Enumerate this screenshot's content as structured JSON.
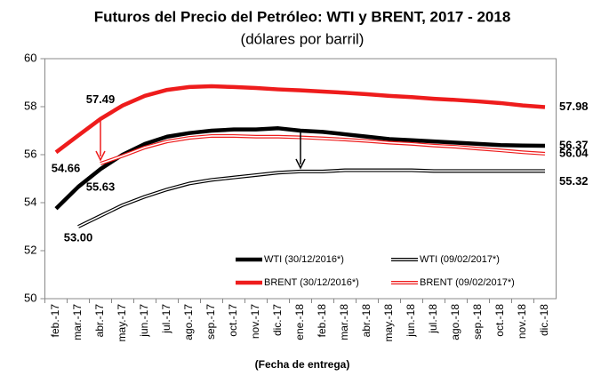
{
  "chart_data": {
    "type": "line",
    "title": "Futuros del Precio del Petróleo: WTI y BRENT, 2017 - 2018",
    "subtitle": "(dólares por barril)",
    "x_label": "(Fecha de entrega)",
    "categories": [
      "feb.-17",
      "mar.-17",
      "abr.-17",
      "may.-17",
      "jun.-17",
      "jul.-17",
      "ago.-17",
      "sep.-17",
      "oct.-17",
      "nov.-17",
      "dic.-17",
      "ene.-18",
      "feb.-18",
      "mar.-18",
      "abr.-18",
      "may.-18",
      "jun.-18",
      "jul.-18",
      "ago.-18",
      "sep.-18",
      "oct.-18",
      "nov.-18",
      "dic.-18"
    ],
    "ylim": [
      50,
      60
    ],
    "yticks": [
      50,
      52,
      54,
      56,
      58,
      60
    ],
    "legend": "lower center",
    "series": [
      {
        "name": "WTI (30/12/2016*)",
        "color": "#000000",
        "style": "solid",
        "values": [
          53.75,
          54.66,
          55.4,
          56.0,
          56.45,
          56.75,
          56.9,
          57.0,
          57.05,
          57.05,
          57.1,
          57.0,
          56.95,
          56.85,
          56.75,
          56.65,
          56.6,
          56.55,
          56.5,
          56.45,
          56.4,
          56.38,
          56.37
        ],
        "value_labels": [
          null,
          "54.66",
          null,
          null,
          null,
          null,
          null,
          null,
          null,
          null,
          null,
          null,
          null,
          null,
          null,
          null,
          null,
          null,
          null,
          null,
          null,
          null,
          "56.37"
        ]
      },
      {
        "name": "WTI (09/02/2017*)",
        "color": "#000000",
        "style": "hollow",
        "values": [
          null,
          53.0,
          53.45,
          53.9,
          54.25,
          54.55,
          54.8,
          54.95,
          55.05,
          55.15,
          55.25,
          55.3,
          55.3,
          55.35,
          55.35,
          55.35,
          55.35,
          55.32,
          55.32,
          55.32,
          55.32,
          55.32,
          55.32
        ],
        "value_labels": [
          null,
          "53.00",
          null,
          null,
          null,
          null,
          null,
          null,
          null,
          null,
          null,
          null,
          null,
          null,
          null,
          null,
          null,
          null,
          null,
          null,
          null,
          null,
          "55.32"
        ]
      },
      {
        "name": "BRENT (30/12/2016*)",
        "color": "#ee1c1c",
        "style": "solid",
        "values": [
          56.1,
          56.8,
          57.49,
          58.05,
          58.45,
          58.7,
          58.82,
          58.85,
          58.82,
          58.78,
          58.72,
          58.68,
          58.63,
          58.58,
          58.52,
          58.45,
          58.4,
          58.33,
          58.28,
          58.22,
          58.15,
          58.05,
          57.98
        ],
        "value_labels": [
          null,
          null,
          "57.49",
          null,
          null,
          null,
          null,
          null,
          null,
          null,
          null,
          null,
          null,
          null,
          null,
          null,
          null,
          null,
          null,
          null,
          null,
          null,
          "57.98"
        ]
      },
      {
        "name": "BRENT (09/02/2017*)",
        "color": "#ee1c1c",
        "style": "hollow",
        "values": [
          null,
          null,
          55.63,
          55.95,
          56.3,
          56.55,
          56.7,
          56.78,
          56.78,
          56.75,
          56.75,
          56.72,
          56.68,
          56.63,
          56.57,
          56.5,
          56.45,
          56.38,
          56.33,
          56.25,
          56.18,
          56.1,
          56.04
        ],
        "value_labels": [
          null,
          null,
          "55.63",
          null,
          null,
          null,
          null,
          null,
          null,
          null,
          null,
          null,
          null,
          null,
          null,
          null,
          null,
          null,
          null,
          null,
          null,
          null,
          "56.04"
        ]
      }
    ]
  }
}
